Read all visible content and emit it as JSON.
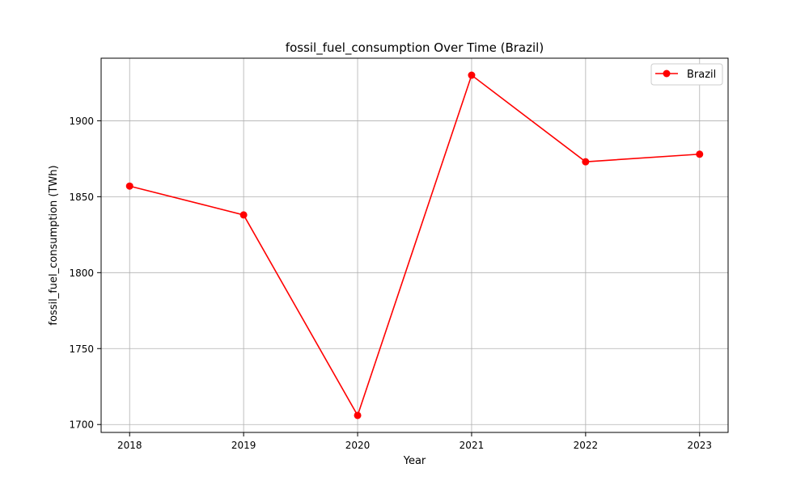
{
  "chart_data": {
    "type": "line",
    "title": "fossil_fuel_consumption Over Time (Brazil)",
    "xlabel": "Year",
    "ylabel": "fossil_fuel_consumption (TWh)",
    "x": [
      2018,
      2019,
      2020,
      2021,
      2022,
      2023
    ],
    "xlim": [
      2017.75,
      2023.25
    ],
    "ylim": [
      1694.8,
      1941.2
    ],
    "xticks": [
      2018,
      2019,
      2020,
      2021,
      2022,
      2023
    ],
    "xtick_labels": [
      "2018",
      "2019",
      "2020",
      "2021",
      "2022",
      "2023"
    ],
    "yticks": [
      1700,
      1750,
      1800,
      1850,
      1900
    ],
    "ytick_labels": [
      "1700",
      "1750",
      "1800",
      "1850",
      "1900"
    ],
    "grid": true,
    "legend_position": "top-right",
    "series": [
      {
        "name": "Brazil",
        "color": "#ff0000",
        "marker": "circle",
        "values": [
          1857,
          1838,
          1706,
          1930,
          1873,
          1878
        ]
      }
    ]
  }
}
